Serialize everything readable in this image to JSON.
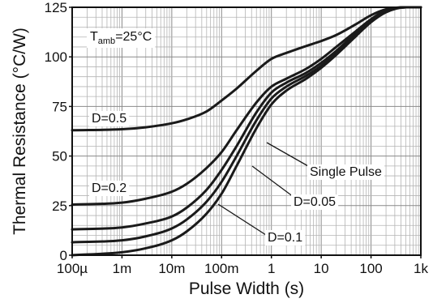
{
  "chart_data": {
    "type": "line",
    "title": "",
    "xlabel": "Pulse Width (s)",
    "ylabel": "Thermal Resistance (°C/W)",
    "x_scale": "log",
    "xlim": [
      0.0001,
      1000
    ],
    "ylim": [
      0,
      125
    ],
    "x_ticks": [
      {
        "value": 0.0001,
        "label": "100µ"
      },
      {
        "value": 0.001,
        "label": "1m"
      },
      {
        "value": 0.01,
        "label": "10m"
      },
      {
        "value": 0.1,
        "label": "100m"
      },
      {
        "value": 1,
        "label": "1"
      },
      {
        "value": 10,
        "label": "10"
      },
      {
        "value": 100,
        "label": "100"
      },
      {
        "value": 1000,
        "label": "1k"
      }
    ],
    "y_ticks": [
      {
        "value": 0,
        "label": "0"
      },
      {
        "value": 25,
        "label": "25"
      },
      {
        "value": 50,
        "label": "50"
      },
      {
        "value": 75,
        "label": "75"
      },
      {
        "value": 100,
        "label": "100"
      },
      {
        "value": 125,
        "label": "125"
      }
    ],
    "grid": true,
    "condition": {
      "prefix": "T",
      "subscript": "amb",
      "suffix": "=25°C"
    },
    "series": [
      {
        "name": "D=0.5",
        "x": [
          0.0001,
          0.001,
          0.003,
          0.01,
          0.02,
          0.05,
          0.1,
          0.2,
          0.5,
          1,
          2,
          5,
          10,
          20,
          50,
          100,
          200,
          500,
          1000
        ],
        "y": [
          63,
          63.5,
          64.5,
          66.5,
          68.5,
          72.5,
          78,
          84,
          93,
          99,
          102,
          105.5,
          108,
          111,
          116.5,
          121,
          124,
          125,
          125
        ]
      },
      {
        "name": "D=0.2",
        "x": [
          0.0001,
          0.001,
          0.003,
          0.01,
          0.02,
          0.05,
          0.1,
          0.2,
          0.5,
          1,
          2,
          5,
          10,
          20,
          50,
          100,
          200,
          500,
          1000
        ],
        "y": [
          25.5,
          26.5,
          28.5,
          32,
          36,
          44,
          52,
          63,
          77,
          85,
          89,
          94,
          99,
          105,
          113,
          119,
          123.5,
          125,
          125
        ]
      },
      {
        "name": "D=0.1",
        "x": [
          0.0001,
          0.001,
          0.003,
          0.01,
          0.02,
          0.05,
          0.1,
          0.2,
          0.5,
          1,
          2,
          5,
          10,
          20,
          50,
          100,
          200,
          500,
          1000
        ],
        "y": [
          13,
          14,
          16,
          19.5,
          24,
          33,
          43,
          55,
          72,
          82,
          87,
          92,
          97,
          103,
          112,
          118.5,
          123,
          125,
          125
        ]
      },
      {
        "name": "D=0.05",
        "x": [
          0.0001,
          0.001,
          0.003,
          0.01,
          0.02,
          0.05,
          0.1,
          0.2,
          0.5,
          1,
          2,
          5,
          10,
          20,
          50,
          100,
          200,
          500,
          1000
        ],
        "y": [
          6.5,
          7.5,
          9.5,
          13.5,
          18,
          27,
          37,
          50,
          68,
          79,
          85,
          90.5,
          95.5,
          102,
          111,
          118,
          123,
          125,
          125
        ]
      },
      {
        "name": "Single Pulse",
        "x": [
          0.0001,
          0.001,
          0.003,
          0.01,
          0.02,
          0.05,
          0.1,
          0.2,
          0.5,
          1,
          2,
          5,
          10,
          20,
          50,
          100,
          200,
          500,
          1000
        ],
        "y": [
          0,
          1.5,
          3.5,
          7.5,
          12,
          21,
          31,
          45,
          64,
          76,
          83,
          89,
          94.5,
          101,
          110.5,
          117.5,
          122.5,
          125,
          125
        ]
      }
    ],
    "annotations": [
      {
        "text": "D=0.5",
        "series": "D=0.5",
        "leader": false
      },
      {
        "text": "D=0.2",
        "series": "D=0.2",
        "leader": false
      },
      {
        "text": "Single Pulse",
        "series": "Single Pulse",
        "leader": true
      },
      {
        "text": "D=0.05",
        "series": "D=0.05",
        "leader": true
      },
      {
        "text": "D=0.1",
        "series": "D=0.1",
        "leader": true
      }
    ]
  }
}
